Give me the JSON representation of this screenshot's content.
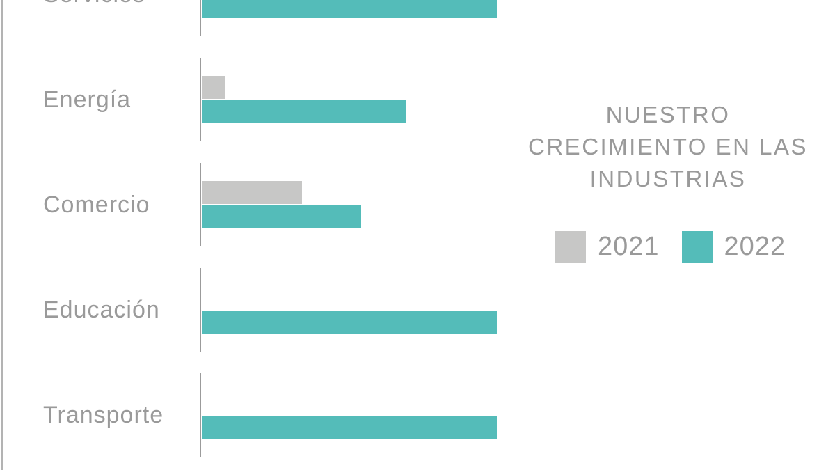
{
  "chart_data": {
    "type": "bar",
    "orientation": "horizontal",
    "title": "NUESTRO CRECIMIENTO EN LAS INDUSTRIAS",
    "title_lines": [
      "NUESTRO",
      "CRECIMIENTO EN LAS",
      "INDUSTRIAS"
    ],
    "categories": [
      "Servicios",
      "Energía",
      "Comercio",
      "Educación",
      "Transporte"
    ],
    "series": [
      {
        "name": "2021",
        "color": "#c7c7c6",
        "values": [
          null,
          8,
          34,
          0,
          0
        ]
      },
      {
        "name": "2022",
        "color": "#54bcb9",
        "values": [
          100,
          69,
          54,
          100,
          100
        ]
      }
    ],
    "value_range": [
      0,
      100
    ],
    "value_axis_labels_shown": false,
    "grid": false,
    "legend_position": "right",
    "notes": "Values estimated from bar lengths (no numeric labels shown). Top row 'Servicios' is cropped by the image edge, so its 2021 bar is not visible."
  },
  "legend": {
    "items": [
      {
        "label": "2021",
        "color": "#c7c7c6"
      },
      {
        "label": "2022",
        "color": "#54bcb9"
      }
    ]
  },
  "colors": {
    "bar_2021": "#c7c7c6",
    "bar_2022": "#54bcb9",
    "text": "#9a9a9a",
    "axis_line": "#9b9b9b",
    "left_edge_line": "#b3b3b3",
    "background": "#ffffff"
  }
}
